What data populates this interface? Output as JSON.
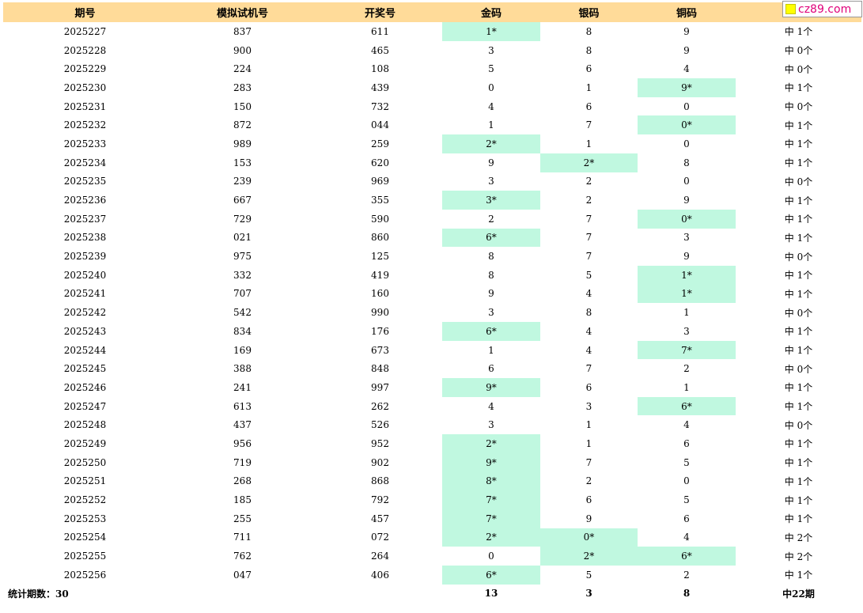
{
  "header": {
    "period": "期号",
    "sim": "模拟试机号",
    "draw": "开奖号",
    "gold": "金码",
    "silver": "银码",
    "bronze": "铜码",
    "result": ""
  },
  "logo": {
    "text": "cz89.com"
  },
  "rows": [
    {
      "period": "2025227",
      "sim": "837",
      "draw": "611",
      "gold": "1*",
      "silver": "8",
      "bronze": "9",
      "result": "中 1个",
      "hits": [
        1,
        0,
        0
      ]
    },
    {
      "period": "2025228",
      "sim": "900",
      "draw": "465",
      "gold": "3",
      "silver": "8",
      "bronze": "9",
      "result": "中 0个",
      "hits": [
        0,
        0,
        0
      ]
    },
    {
      "period": "2025229",
      "sim": "224",
      "draw": "108",
      "gold": "5",
      "silver": "6",
      "bronze": "4",
      "result": "中 0个",
      "hits": [
        0,
        0,
        0
      ]
    },
    {
      "period": "2025230",
      "sim": "283",
      "draw": "439",
      "gold": "0",
      "silver": "1",
      "bronze": "9*",
      "result": "中 1个",
      "hits": [
        0,
        0,
        1
      ]
    },
    {
      "period": "2025231",
      "sim": "150",
      "draw": "732",
      "gold": "4",
      "silver": "6",
      "bronze": "0",
      "result": "中 0个",
      "hits": [
        0,
        0,
        0
      ]
    },
    {
      "period": "2025232",
      "sim": "872",
      "draw": "044",
      "gold": "1",
      "silver": "7",
      "bronze": "0*",
      "result": "中 1个",
      "hits": [
        0,
        0,
        1
      ]
    },
    {
      "period": "2025233",
      "sim": "989",
      "draw": "259",
      "gold": "2*",
      "silver": "1",
      "bronze": "0",
      "result": "中 1个",
      "hits": [
        1,
        0,
        0
      ]
    },
    {
      "period": "2025234",
      "sim": "153",
      "draw": "620",
      "gold": "9",
      "silver": "2*",
      "bronze": "8",
      "result": "中 1个",
      "hits": [
        0,
        1,
        0
      ]
    },
    {
      "period": "2025235",
      "sim": "239",
      "draw": "969",
      "gold": "3",
      "silver": "2",
      "bronze": "0",
      "result": "中 0个",
      "hits": [
        0,
        0,
        0
      ]
    },
    {
      "period": "2025236",
      "sim": "667",
      "draw": "355",
      "gold": "3*",
      "silver": "2",
      "bronze": "9",
      "result": "中 1个",
      "hits": [
        1,
        0,
        0
      ]
    },
    {
      "period": "2025237",
      "sim": "729",
      "draw": "590",
      "gold": "2",
      "silver": "7",
      "bronze": "0*",
      "result": "中 1个",
      "hits": [
        0,
        0,
        1
      ]
    },
    {
      "period": "2025238",
      "sim": "021",
      "draw": "860",
      "gold": "6*",
      "silver": "7",
      "bronze": "3",
      "result": "中 1个",
      "hits": [
        1,
        0,
        0
      ]
    },
    {
      "period": "2025239",
      "sim": "975",
      "draw": "125",
      "gold": "8",
      "silver": "7",
      "bronze": "9",
      "result": "中 0个",
      "hits": [
        0,
        0,
        0
      ]
    },
    {
      "period": "2025240",
      "sim": "332",
      "draw": "419",
      "gold": "8",
      "silver": "5",
      "bronze": "1*",
      "result": "中 1个",
      "hits": [
        0,
        0,
        1
      ]
    },
    {
      "period": "2025241",
      "sim": "707",
      "draw": "160",
      "gold": "9",
      "silver": "4",
      "bronze": "1*",
      "result": "中 1个",
      "hits": [
        0,
        0,
        1
      ]
    },
    {
      "period": "2025242",
      "sim": "542",
      "draw": "990",
      "gold": "3",
      "silver": "8",
      "bronze": "1",
      "result": "中 0个",
      "hits": [
        0,
        0,
        0
      ]
    },
    {
      "period": "2025243",
      "sim": "834",
      "draw": "176",
      "gold": "6*",
      "silver": "4",
      "bronze": "3",
      "result": "中 1个",
      "hits": [
        1,
        0,
        0
      ]
    },
    {
      "period": "2025244",
      "sim": "169",
      "draw": "673",
      "gold": "1",
      "silver": "4",
      "bronze": "7*",
      "result": "中 1个",
      "hits": [
        0,
        0,
        1
      ]
    },
    {
      "period": "2025245",
      "sim": "388",
      "draw": "848",
      "gold": "6",
      "silver": "7",
      "bronze": "2",
      "result": "中 0个",
      "hits": [
        0,
        0,
        0
      ]
    },
    {
      "period": "2025246",
      "sim": "241",
      "draw": "997",
      "gold": "9*",
      "silver": "6",
      "bronze": "1",
      "result": "中 1个",
      "hits": [
        1,
        0,
        0
      ]
    },
    {
      "period": "2025247",
      "sim": "613",
      "draw": "262",
      "gold": "4",
      "silver": "3",
      "bronze": "6*",
      "result": "中 1个",
      "hits": [
        0,
        0,
        1
      ]
    },
    {
      "period": "2025248",
      "sim": "437",
      "draw": "526",
      "gold": "3",
      "silver": "1",
      "bronze": "4",
      "result": "中 0个",
      "hits": [
        0,
        0,
        0
      ]
    },
    {
      "period": "2025249",
      "sim": "956",
      "draw": "952",
      "gold": "2*",
      "silver": "1",
      "bronze": "6",
      "result": "中 1个",
      "hits": [
        1,
        0,
        0
      ]
    },
    {
      "period": "2025250",
      "sim": "719",
      "draw": "902",
      "gold": "9*",
      "silver": "7",
      "bronze": "5",
      "result": "中 1个",
      "hits": [
        1,
        0,
        0
      ]
    },
    {
      "period": "2025251",
      "sim": "268",
      "draw": "868",
      "gold": "8*",
      "silver": "2",
      "bronze": "0",
      "result": "中 1个",
      "hits": [
        1,
        0,
        0
      ]
    },
    {
      "period": "2025252",
      "sim": "185",
      "draw": "792",
      "gold": "7*",
      "silver": "6",
      "bronze": "5",
      "result": "中 1个",
      "hits": [
        1,
        0,
        0
      ]
    },
    {
      "period": "2025253",
      "sim": "255",
      "draw": "457",
      "gold": "7*",
      "silver": "9",
      "bronze": "6",
      "result": "中 1个",
      "hits": [
        1,
        0,
        0
      ]
    },
    {
      "period": "2025254",
      "sim": "711",
      "draw": "072",
      "gold": "2*",
      "silver": "0*",
      "bronze": "4",
      "result": "中 2个",
      "hits": [
        1,
        1,
        0
      ]
    },
    {
      "period": "2025255",
      "sim": "762",
      "draw": "264",
      "gold": "0",
      "silver": "2*",
      "bronze": "6*",
      "result": "中 2个",
      "hits": [
        0,
        1,
        1
      ]
    },
    {
      "period": "2025256",
      "sim": "047",
      "draw": "406",
      "gold": "6*",
      "silver": "5",
      "bronze": "2",
      "result": "中 1个",
      "hits": [
        1,
        0,
        0
      ]
    }
  ],
  "colors": {
    "header_bg": "#ffdb99",
    "hit_bg": "#c0f8e0",
    "logo_text": "#e0007a",
    "logo_square": "#ffff00"
  },
  "footer": {
    "label": "统计期数：30",
    "gold_total": "13",
    "silver_total": "3",
    "bronze_total": "8",
    "result_total": "中22期"
  }
}
